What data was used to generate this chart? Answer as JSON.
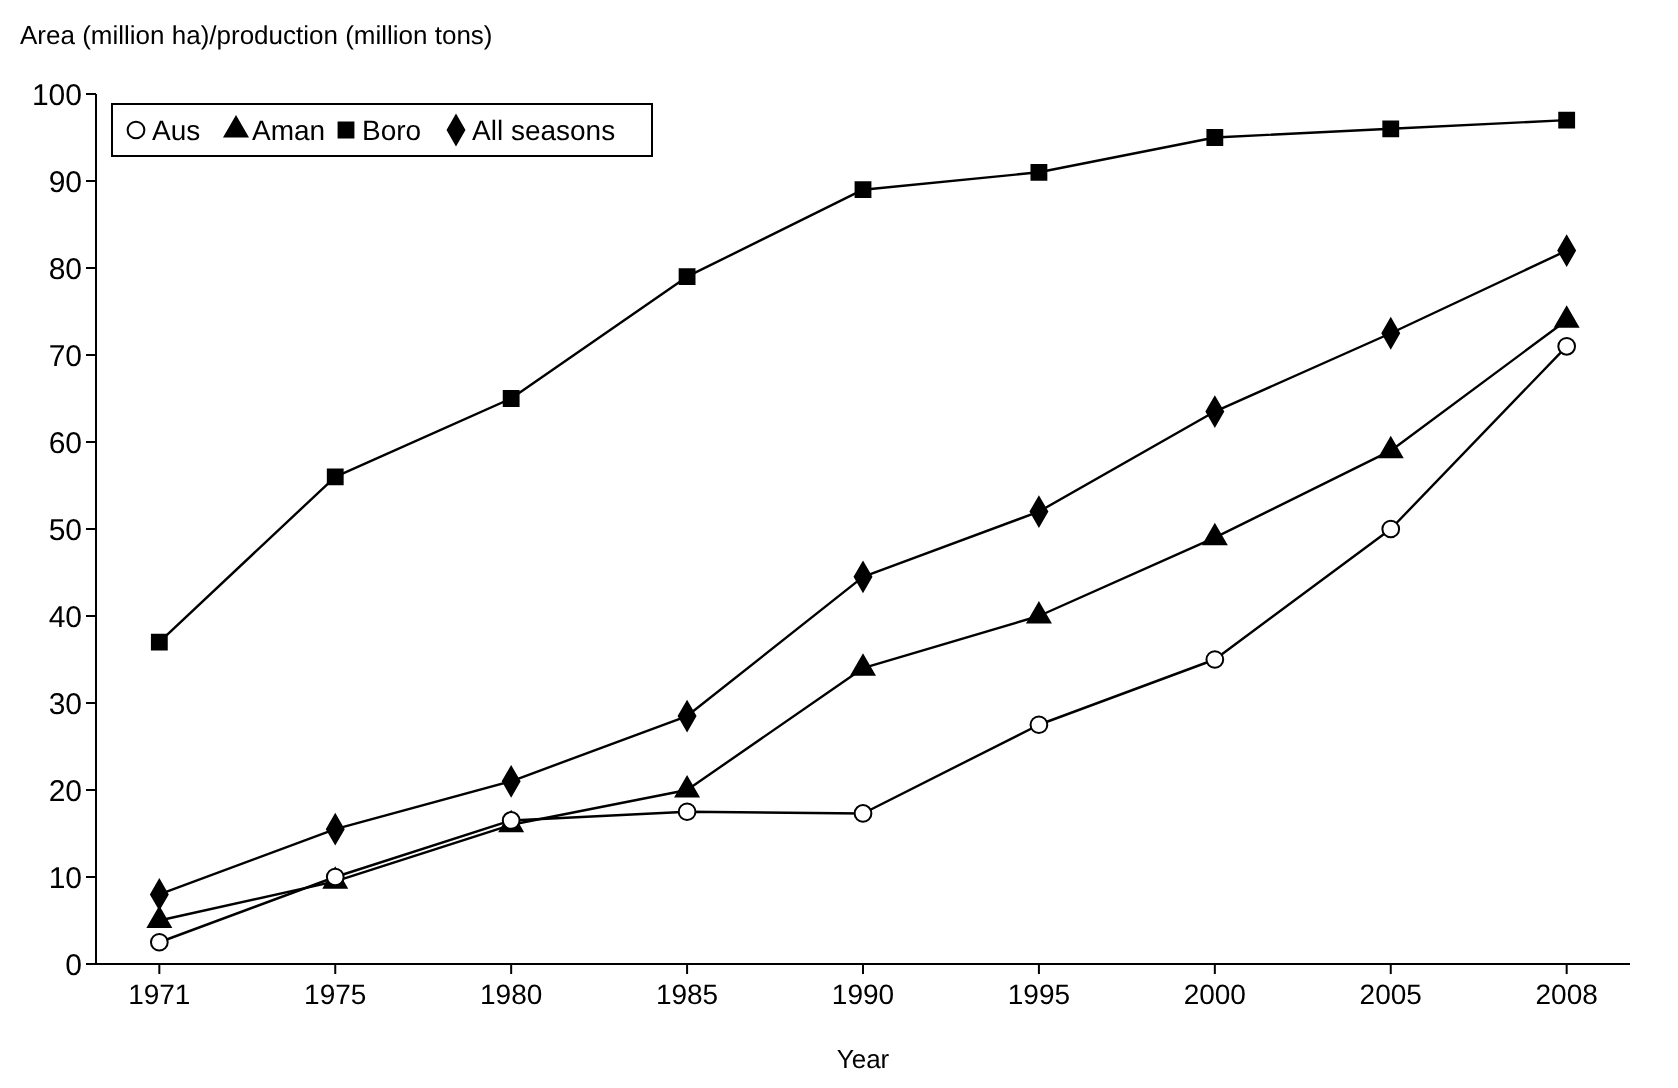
{
  "chart_data": {
    "type": "line",
    "ylabel": "Area (million ha)/production (million tons)",
    "xlabel": "Year",
    "categories": [
      "1971",
      "1975",
      "1980",
      "1985",
      "1990",
      "1995",
      "2000",
      "2005",
      "2008"
    ],
    "ylim": [
      0,
      100
    ],
    "yticks": [
      0,
      10,
      20,
      30,
      40,
      50,
      60,
      70,
      80,
      90,
      100
    ],
    "grid": false,
    "legend": "top left",
    "series": [
      {
        "name": "Aus",
        "color": "#000000",
        "marker": "circle",
        "values": [
          2.5,
          10,
          16.5,
          17.5,
          17.3,
          27.5,
          35,
          50,
          71
        ]
      },
      {
        "name": "Aman",
        "color": "#000000",
        "marker": "triangle",
        "values": [
          5,
          9.5,
          16,
          20,
          34,
          40,
          49,
          59,
          74
        ]
      },
      {
        "name": "Boro",
        "color": "#000000",
        "marker": "square",
        "values": [
          37,
          56,
          65,
          79,
          89,
          91,
          95,
          96,
          97
        ]
      },
      {
        "name": "All seasons",
        "color": "#000000",
        "marker": "diamond",
        "values": [
          8,
          15.5,
          21,
          28.5,
          44.5,
          52,
          63.5,
          72.5,
          82
        ]
      }
    ]
  }
}
